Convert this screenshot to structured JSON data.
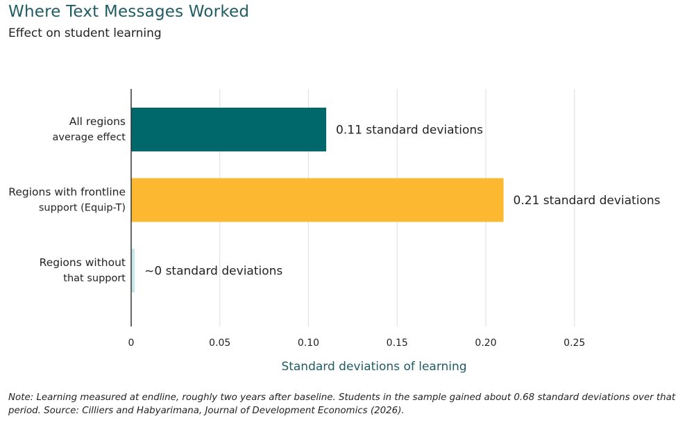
{
  "header": {
    "title": "Where Text Messages Worked",
    "subtitle": "Effect on student learning"
  },
  "chart_data": {
    "type": "bar",
    "orientation": "horizontal",
    "categories": [
      [
        "All regions",
        "average effect"
      ],
      [
        "Regions with frontline",
        "support (Equip-T)"
      ],
      [
        "Regions without",
        "that support"
      ]
    ],
    "values": [
      0.11,
      0.21,
      0.002
    ],
    "data_labels": [
      "0.11 standard deviations",
      "0.21 standard deviations",
      "~0 standard deviations"
    ],
    "colors": [
      "#00686b",
      "#fbb830",
      "#c9e6ea"
    ],
    "xlabel": "Standard deviations of learning",
    "xticks": [
      "0",
      "0.05",
      "0.10",
      "0.15",
      "0.20",
      "0.25"
    ],
    "xtick_values": [
      0,
      0.05,
      0.1,
      0.15,
      0.2,
      0.25
    ],
    "xlim": [
      0,
      0.25
    ],
    "grid": true
  },
  "note": "Note: Learning measured at endline, roughly two years after baseline. Students in the sample gained about 0.68 standard deviations over that period. Source: Cilliers and Habyarimana, Journal of Development Economics (2026).",
  "colors": {
    "title": "#1f5c63",
    "axis_label": "#1f5c63",
    "gridline": "#dddddd",
    "axis": "#333333"
  }
}
